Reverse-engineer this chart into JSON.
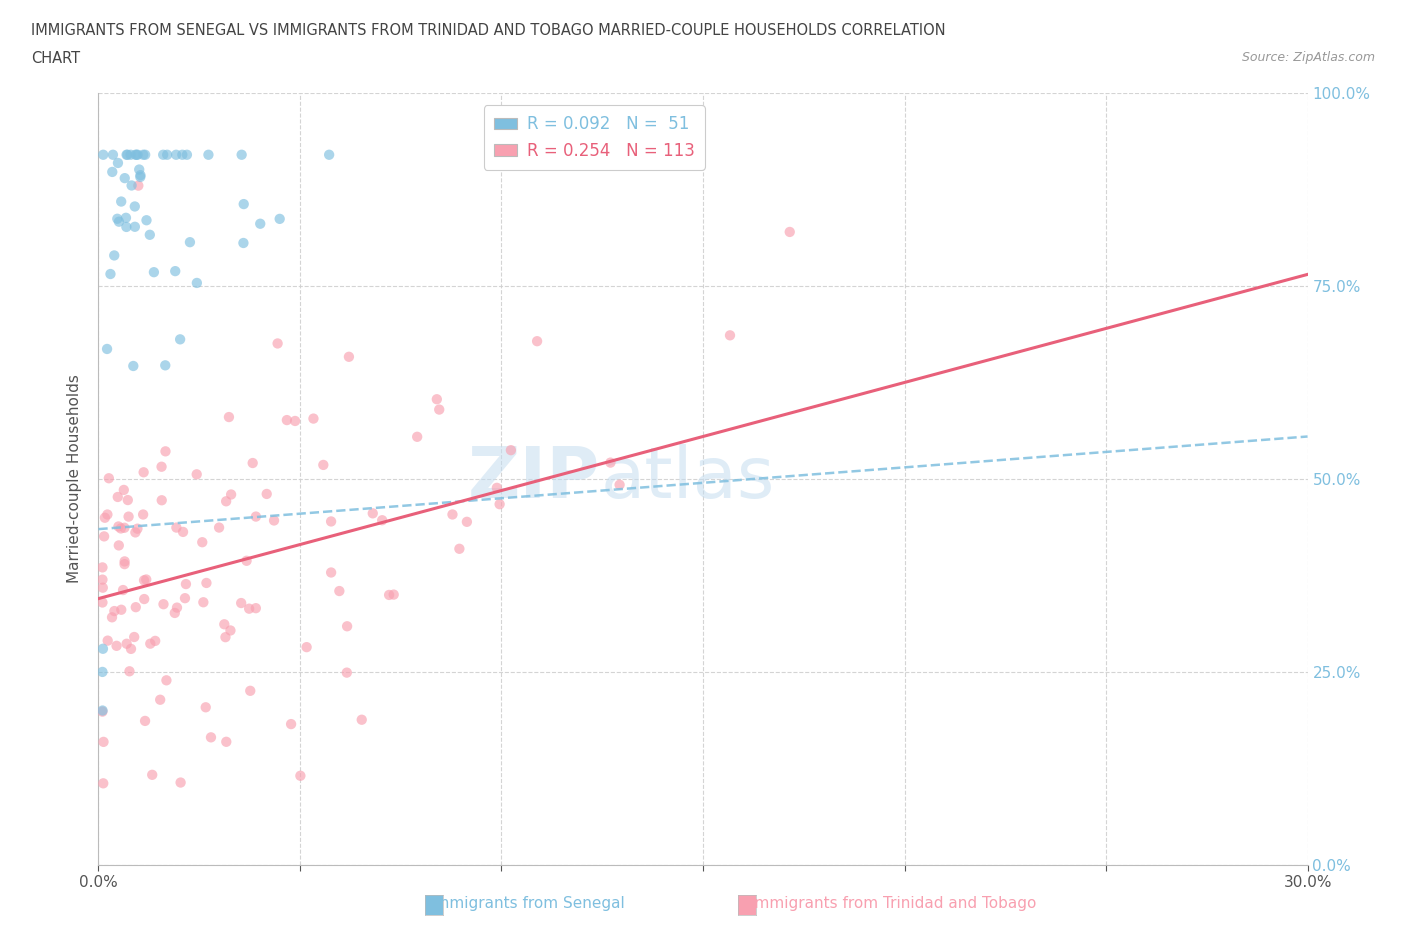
{
  "title_line1": "IMMIGRANTS FROM SENEGAL VS IMMIGRANTS FROM TRINIDAD AND TOBAGO MARRIED-COUPLE HOUSEHOLDS CORRELATION",
  "title_line2": "CHART",
  "source_text": "Source: ZipAtlas.com",
  "ylabel": "Married-couple Households",
  "xlim": [
    0.0,
    0.3
  ],
  "ylim": [
    0.0,
    1.0
  ],
  "x_ticks": [
    0.0,
    0.05,
    0.1,
    0.15,
    0.2,
    0.25,
    0.3
  ],
  "x_tick_labels": [
    "0.0%",
    "",
    "",
    "",
    "",
    "",
    "30.0%"
  ],
  "y_tick_labels_right": [
    "100.0%",
    "75.0%",
    "50.0%",
    "25.0%",
    "0.0%"
  ],
  "y_ticks_right": [
    1.0,
    0.75,
    0.5,
    0.25,
    0.0
  ],
  "legend_label_senegal": "R = 0.092   N =  51",
  "legend_label_trinidad": "R = 0.254   N = 113",
  "color_senegal": "#7fbfdf",
  "color_trinidad": "#f8a0b0",
  "trendline_senegal_color": "#7fbfdf",
  "trendline_trinidad_color": "#e8607a",
  "trendline_senegal_slope": 0.4,
  "trendline_senegal_intercept": 0.435,
  "trendline_trinidad_slope": 1.4,
  "trendline_trinidad_intercept": 0.345,
  "watermark_ZIP": "ZIP",
  "watermark_atlas": "atlas",
  "background_color": "#ffffff",
  "grid_color": "#d0d0d0",
  "title_color": "#444444",
  "axis_label_color": "#555555",
  "right_axis_label_color": "#7fbfdf",
  "scatter_alpha": 0.65,
  "scatter_size": 55,
  "bottom_legend_color_senegal": "#7fbfdf",
  "bottom_legend_color_trinidad": "#f8a0b0"
}
